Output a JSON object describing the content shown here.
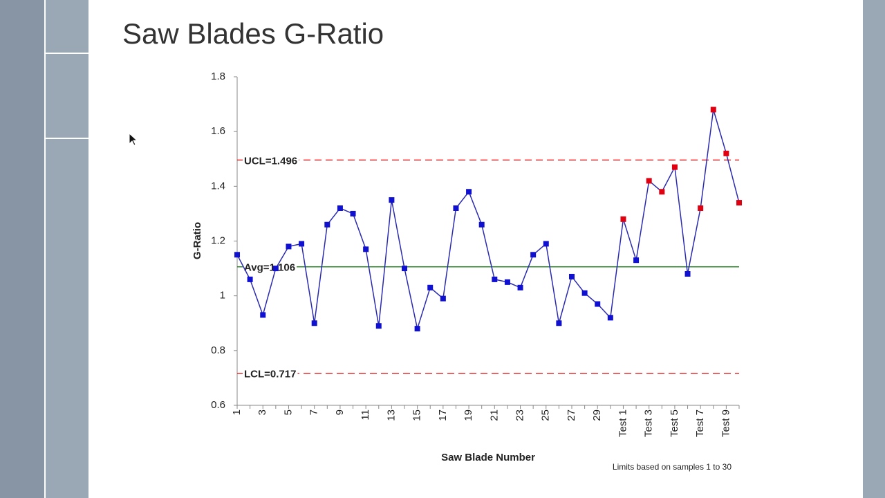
{
  "chart_data": {
    "type": "line",
    "title": "Saw Blades G-Ratio",
    "x_label": "Saw Blade Number",
    "y_label": "G-Ratio",
    "note": "Limits based on samples 1 to 30",
    "categories": [
      "1",
      null,
      "3",
      null,
      "5",
      null,
      "7",
      null,
      "9",
      null,
      "11",
      null,
      "13",
      null,
      "15",
      null,
      "17",
      null,
      "19",
      null,
      "21",
      null,
      "23",
      null,
      "25",
      null,
      "27",
      null,
      "29",
      null,
      "Test 1",
      null,
      "Test 3",
      null,
      "Test 5",
      null,
      "Test 7",
      null,
      "Test 9",
      null
    ],
    "values": [
      1.15,
      1.06,
      0.93,
      1.1,
      1.18,
      1.19,
      0.9,
      1.26,
      1.32,
      1.3,
      1.17,
      0.89,
      1.35,
      1.1,
      0.88,
      1.03,
      0.99,
      1.32,
      1.38,
      1.26,
      1.06,
      1.05,
      1.03,
      1.15,
      1.19,
      0.9,
      1.07,
      1.01,
      0.97,
      0.92,
      1.28,
      1.13,
      1.42,
      1.38,
      1.47,
      1.08,
      1.32,
      1.68,
      1.52,
      1.34
    ],
    "color": "#2a2ab0",
    "marker_colors": [
      "#1010d0",
      "#1010d0",
      "#1010d0",
      "#1010d0",
      "#1010d0",
      "#1010d0",
      "#1010d0",
      "#1010d0",
      "#1010d0",
      "#1010d0",
      "#1010d0",
      "#1010d0",
      "#1010d0",
      "#1010d0",
      "#1010d0",
      "#1010d0",
      "#1010d0",
      "#1010d0",
      "#1010d0",
      "#1010d0",
      "#1010d0",
      "#1010d0",
      "#1010d0",
      "#1010d0",
      "#1010d0",
      "#1010d0",
      "#1010d0",
      "#1010d0",
      "#1010d0",
      "#1010d0",
      "#e00010",
      "#1010d0",
      "#e00010",
      "#e00010",
      "#e00010",
      "#1010d0",
      "#e00010",
      "#e00010",
      "#e00010",
      "#e00010"
    ],
    "ref_lines": [
      {
        "label": "UCL=1.496",
        "value": 1.496,
        "color": "#e03030",
        "dashed": true
      },
      {
        "label": "Avg=1.106",
        "value": 1.106,
        "color": "#2a8a2a",
        "dashed": false
      },
      {
        "label": "LCL=0.717",
        "value": 0.717,
        "color": "#e03030",
        "dashed": true
      }
    ],
    "ylim": [
      0.6,
      1.8
    ],
    "yticks": [
      0.6,
      0.8,
      1,
      1.2,
      1.4,
      1.6,
      1.8
    ],
    "grid": false
  }
}
